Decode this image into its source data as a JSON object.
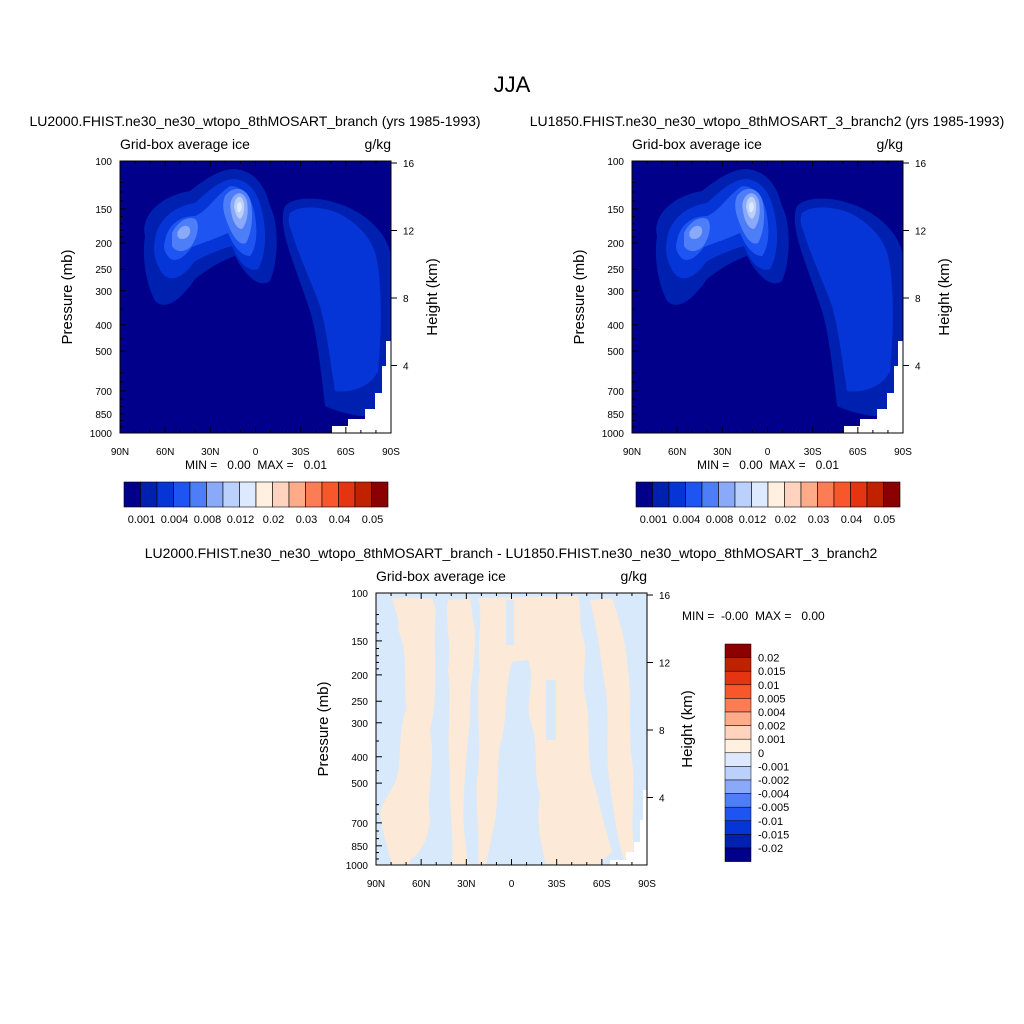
{
  "figure": {
    "season": "JJA"
  },
  "colors": {
    "cb_main": [
      "#00008b",
      "#0020b0",
      "#0535d6",
      "#1e55f2",
      "#4d7ef7",
      "#8aa9f9",
      "#bcd0fc",
      "#dde9fe",
      "#fff0e0",
      "#ffd3bd",
      "#fdab89",
      "#fb7c55",
      "#f9562c",
      "#e53410",
      "#c02200",
      "#8b0000"
    ],
    "cb_diff": [
      "#00008b",
      "#0020b0",
      "#0535d6",
      "#1e55f2",
      "#4d7ef7",
      "#8aa9f9",
      "#bcd0fc",
      "#dde9fe",
      "#fff0e0",
      "#ffd3bd",
      "#fdab89",
      "#fb7c55",
      "#f9562c",
      "#e53410",
      "#c02200",
      "#8b0000"
    ],
    "diff_pos": "#fde9d7",
    "diff_neg": "#d7e9fb"
  },
  "chart_data": [
    {
      "type": "heatmap",
      "title": "LU2000.FHIST.ne30_ne30_wtopo_8thMOSART_branch (yrs 1985-1993)",
      "left_label": "Grid-box average ice",
      "right_label": "g/kg",
      "ylabel": "Pressure (mb)",
      "y2label": "Height (km)",
      "x_ticks": [
        "90N",
        "60N",
        "30N",
        "0",
        "30S",
        "60S",
        "90S"
      ],
      "x_values": [
        90,
        60,
        30,
        0,
        -30,
        -60,
        -90
      ],
      "xlim": [
        90,
        -90
      ],
      "y_scale": "log",
      "ylim": [
        1000,
        100
      ],
      "y_ticks": [
        100,
        150,
        200,
        250,
        300,
        400,
        500,
        700,
        850,
        1000
      ],
      "y2_ticks": [
        16,
        12,
        8,
        4
      ],
      "stats": "MIN =   0.00  MAX =   0.01",
      "colorbar_labels": [
        "0.001",
        "0.004",
        "0.008",
        "0.012",
        "0.02",
        "0.03",
        "0.04",
        "0.05"
      ],
      "grid": false
    },
    {
      "type": "heatmap",
      "title": "LU1850.FHIST.ne30_ne30_wtopo_8thMOSART_3_branch2 (yrs 1985-1993)",
      "left_label": "Grid-box average ice",
      "right_label": "g/kg",
      "ylabel": "Pressure (mb)",
      "y2label": "Height (km)",
      "x_ticks": [
        "90N",
        "60N",
        "30N",
        "0",
        "30S",
        "60S",
        "90S"
      ],
      "x_values": [
        90,
        60,
        30,
        0,
        -30,
        -60,
        -90
      ],
      "xlim": [
        90,
        -90
      ],
      "y_scale": "log",
      "ylim": [
        1000,
        100
      ],
      "y_ticks": [
        100,
        150,
        200,
        250,
        300,
        400,
        500,
        700,
        850,
        1000
      ],
      "y2_ticks": [
        16,
        12,
        8,
        4
      ],
      "stats": "MIN =   0.00  MAX =   0.01",
      "colorbar_labels": [
        "0.001",
        "0.004",
        "0.008",
        "0.012",
        "0.02",
        "0.03",
        "0.04",
        "0.05"
      ],
      "grid": false
    },
    {
      "type": "heatmap",
      "title": "LU2000.FHIST.ne30_ne30_wtopo_8thMOSART_branch - LU1850.FHIST.ne30_ne30_wtopo_8thMOSART_3_branch2",
      "left_label": "Grid-box average ice",
      "right_label": "g/kg",
      "ylabel": "Pressure (mb)",
      "y2label": "Height (km)",
      "x_ticks": [
        "90N",
        "60N",
        "30N",
        "0",
        "30S",
        "60S",
        "90S"
      ],
      "x_values": [
        90,
        60,
        30,
        0,
        -30,
        -60,
        -90
      ],
      "xlim": [
        90,
        -90
      ],
      "y_scale": "log",
      "ylim": [
        1000,
        100
      ],
      "y_ticks": [
        100,
        150,
        200,
        250,
        300,
        400,
        500,
        700,
        850,
        1000
      ],
      "y2_ticks": [
        16,
        12,
        8,
        4
      ],
      "stats": "MIN =  -0.00  MAX =   0.00",
      "colorbar_labels": [
        "0.02",
        "0.015",
        "0.01",
        "0.005",
        "0.004",
        "0.002",
        "0.001",
        "0",
        "-0.001",
        "-0.002",
        "-0.004",
        "-0.005",
        "-0.01",
        "-0.015",
        "-0.02"
      ],
      "grid": false
    }
  ]
}
